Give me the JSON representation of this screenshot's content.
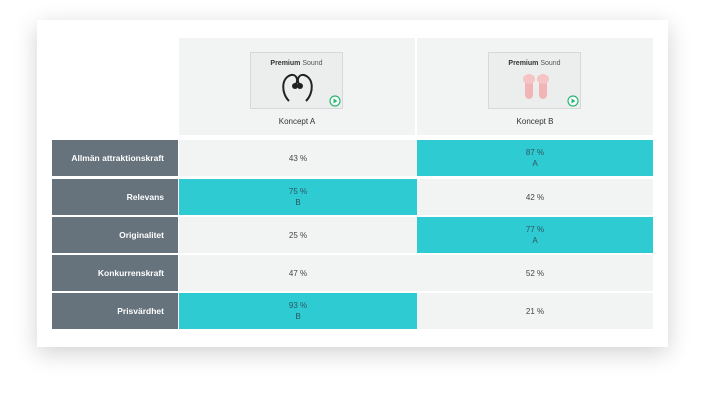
{
  "table": {
    "columns": [
      {
        "label": "Koncept A",
        "thumbnail": {
          "brand": "Premium",
          "text": "Sound"
        }
      },
      {
        "label": "Koncept B",
        "thumbnail": {
          "brand": "Premium",
          "text": "Sound"
        }
      }
    ],
    "rows": [
      {
        "label": "Allmän attraktionskraft",
        "cells": [
          {
            "value": "43 %",
            "highlight": false
          },
          {
            "value": "87 %",
            "note": "A",
            "highlight": true
          }
        ]
      },
      {
        "label": "Relevans",
        "cells": [
          {
            "value": "75 %",
            "note": "B",
            "highlight": true
          },
          {
            "value": "42 %",
            "highlight": false
          }
        ]
      },
      {
        "label": "Originalitet",
        "cells": [
          {
            "value": "25 %",
            "highlight": false
          },
          {
            "value": "77 %",
            "note": "A",
            "highlight": true
          }
        ]
      },
      {
        "label": "Konkurrenskraft",
        "cells": [
          {
            "value": "47 %",
            "highlight": false
          },
          {
            "value": "52 %",
            "highlight": false
          }
        ]
      },
      {
        "label": "Prisvärdhet",
        "cells": [
          {
            "value": "93 %",
            "note": "B",
            "highlight": true
          },
          {
            "value": "21 %",
            "highlight": false
          }
        ]
      }
    ]
  }
}
